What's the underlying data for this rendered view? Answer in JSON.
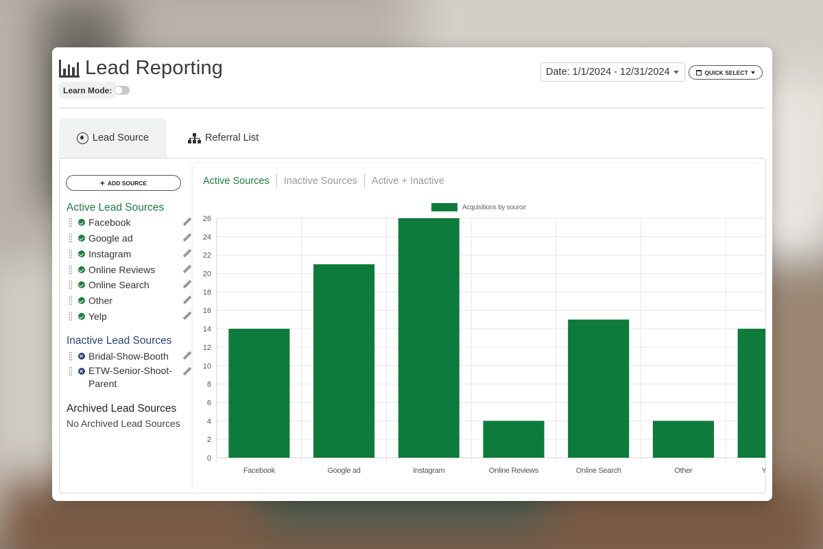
{
  "header": {
    "title": "Lead Reporting",
    "learn_mode_label": "Learn Mode:",
    "date_range": "Date: 1/1/2024 - 12/31/2024",
    "quick_select_label": "QUICK SELECT"
  },
  "tabs": [
    {
      "label": "Lead Source",
      "icon": "compass-icon",
      "active": true
    },
    {
      "label": "Referral List",
      "icon": "sitemap-icon",
      "active": false
    }
  ],
  "sidebar": {
    "add_source_label": "ADD SOURCE",
    "active_title": "Active Lead Sources",
    "active_items": [
      "Facebook",
      "Google ad",
      "Instagram",
      "Online Reviews",
      "Online Search",
      "Other",
      "Yelp"
    ],
    "inactive_title": "Inactive Lead Sources",
    "inactive_items": [
      "Bridal-Show-Booth",
      "ETW-Senior-Shoot-Parent"
    ],
    "archived_title": "Archived Lead Sources",
    "archived_empty": "No Archived Lead Sources"
  },
  "subtabs": [
    "Active Sources",
    "Inactive Sources",
    "Active + Inactive"
  ],
  "colors": {
    "accent": "#1f7a3d",
    "bar": "#0e7a3c",
    "inactive": "#2b3f72"
  },
  "chart_data": {
    "type": "bar",
    "categories": [
      "Facebook",
      "Google ad",
      "Instagram",
      "Online Reviews",
      "Online Search",
      "Other",
      "Yelp"
    ],
    "series": [
      {
        "name": "Acquisitions by source",
        "values": [
          14,
          21,
          26,
          4,
          15,
          4,
          14
        ]
      }
    ],
    "ylim": [
      0,
      26
    ],
    "yticks": [
      0,
      2,
      4,
      6,
      8,
      10,
      12,
      14,
      16,
      18,
      20,
      22,
      24,
      26
    ],
    "grid": true,
    "legend": "top-center"
  }
}
